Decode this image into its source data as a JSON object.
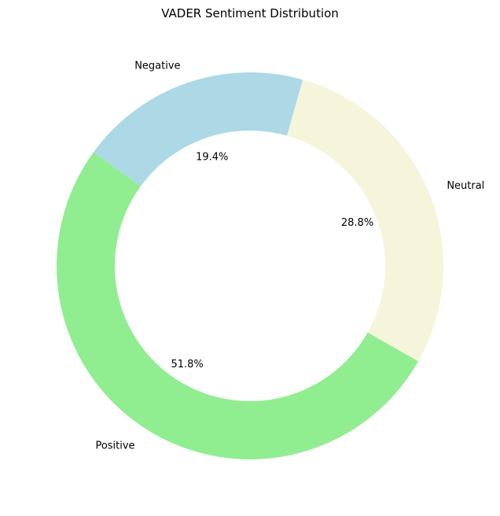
{
  "chart_data": {
    "type": "pie",
    "donut": true,
    "title": "VADER Sentiment Distribution",
    "categories": [
      "Positive",
      "Neutral",
      "Negative"
    ],
    "values": [
      51.8,
      28.8,
      19.4
    ],
    "percent_labels": [
      "51.8%",
      "28.8%",
      "19.4%"
    ],
    "colors": [
      "#90ee90",
      "#f5f5dc",
      "#add8e6"
    ],
    "legend": "none"
  }
}
